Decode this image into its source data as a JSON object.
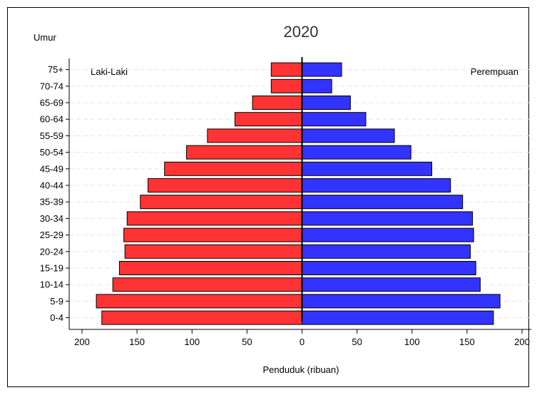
{
  "chart_data": {
    "type": "bar",
    "title": "2020",
    "ylabel": "Umur",
    "xlabel": "Penduduk (ribuan)",
    "left_label": "Laki-Laki",
    "right_label": "Perempuan",
    "xlim": [
      -200,
      200
    ],
    "xticks": [
      -200,
      -150,
      -100,
      -50,
      0,
      50,
      100,
      150,
      200
    ],
    "xtick_labels": [
      "200",
      "150",
      "100",
      "50",
      "0",
      "50",
      "100",
      "150",
      "200"
    ],
    "categories": [
      "0-4",
      "5-9",
      "10-14",
      "15-19",
      "20-24",
      "25-29",
      "30-34",
      "35-39",
      "40-44",
      "45-49",
      "50-54",
      "55-59",
      "60-64",
      "65-69",
      "70-74",
      "75+"
    ],
    "series": [
      {
        "name": "Laki-Laki",
        "color": "#ff3333",
        "values": [
          182,
          187,
          172,
          166,
          161,
          162,
          159,
          147,
          140,
          125,
          105,
          86,
          61,
          45,
          28,
          28
        ]
      },
      {
        "name": "Perempuan",
        "color": "#3333ff",
        "values": [
          174,
          180,
          162,
          158,
          153,
          156,
          155,
          146,
          135,
          118,
          99,
          84,
          58,
          44,
          27,
          36
        ]
      }
    ],
    "grid": "horizontal dashed",
    "legend": "none"
  }
}
